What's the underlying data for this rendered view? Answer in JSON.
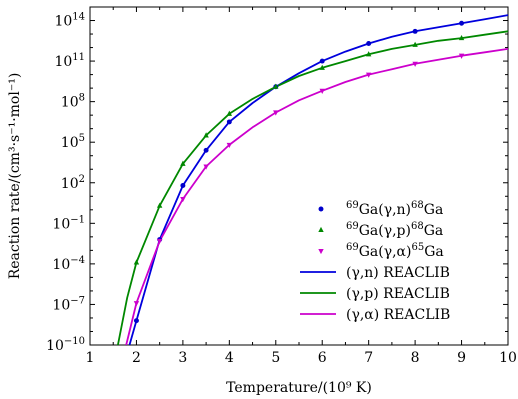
{
  "chart_data": {
    "type": "line",
    "xlabel": "Temperature/(10⁹ K)",
    "ylabel": "Reaction rate/(cm³·s⁻¹·mol⁻¹)",
    "xlim": [
      1,
      10
    ],
    "ylim_log10": [
      -10,
      15
    ],
    "y_scale": "log",
    "grid": false,
    "legend_position": "bottom-right",
    "x_ticks": [
      {
        "value": 1,
        "label": "1"
      },
      {
        "value": 2,
        "label": "2"
      },
      {
        "value": 3,
        "label": "3"
      },
      {
        "value": 4,
        "label": "4"
      },
      {
        "value": 5,
        "label": "5"
      },
      {
        "value": 6,
        "label": "6"
      },
      {
        "value": 7,
        "label": "7"
      },
      {
        "value": 8,
        "label": "8"
      },
      {
        "value": 9,
        "label": "9"
      },
      {
        "value": 10,
        "label": "10"
      }
    ],
    "y_ticks": [
      {
        "exp": -10,
        "base": "10",
        "sup": "−10"
      },
      {
        "exp": -7,
        "base": "10",
        "sup": "−7"
      },
      {
        "exp": -4,
        "base": "10",
        "sup": "−4"
      },
      {
        "exp": -1,
        "base": "10",
        "sup": "−1"
      },
      {
        "exp": 2,
        "base": "10",
        "sup": "2"
      },
      {
        "exp": 5,
        "base": "10",
        "sup": "5"
      },
      {
        "exp": 8,
        "base": "10",
        "sup": "8"
      },
      {
        "exp": 11,
        "base": "10",
        "sup": "11"
      },
      {
        "exp": 14,
        "base": "10",
        "sup": "14"
      }
    ],
    "series": [
      {
        "kind": "points",
        "marker": "circle",
        "color": "#0000cc",
        "label_parts": {
          "pre": "69",
          "mid": "Ga(γ,n)",
          "sup": "68",
          "post": "Ga"
        },
        "points": [
          [
            2.0,
            -8.2
          ],
          [
            2.5,
            -2.2
          ],
          [
            3.0,
            1.8
          ],
          [
            3.5,
            4.4
          ],
          [
            4.0,
            6.5
          ],
          [
            5.0,
            9.1
          ],
          [
            6.0,
            11.0
          ],
          [
            7.0,
            12.3
          ],
          [
            8.0,
            13.2
          ],
          [
            9.0,
            13.8
          ]
        ]
      },
      {
        "kind": "points",
        "marker": "triangle-up",
        "color": "#008800",
        "label_parts": {
          "pre": "69",
          "mid": "Ga(γ,p)",
          "sup": "68",
          "post": "Ga"
        },
        "points": [
          [
            2.0,
            -3.9
          ],
          [
            2.5,
            0.3
          ],
          [
            3.0,
            3.4
          ],
          [
            3.5,
            5.5
          ],
          [
            4.0,
            7.1
          ],
          [
            5.0,
            9.1
          ],
          [
            6.0,
            10.5
          ],
          [
            7.0,
            11.5
          ],
          [
            8.0,
            12.2
          ],
          [
            9.0,
            12.7
          ]
        ]
      },
      {
        "kind": "points",
        "marker": "triangle-down",
        "color": "#cc00cc",
        "label_parts": {
          "pre": "69",
          "mid": "Ga(γ,α)",
          "sup": "65",
          "post": "Ga"
        },
        "points": [
          [
            2.0,
            -6.9
          ],
          [
            2.5,
            -2.3
          ],
          [
            3.0,
            0.8
          ],
          [
            3.5,
            3.2
          ],
          [
            4.0,
            4.8
          ],
          [
            5.0,
            7.2
          ],
          [
            6.0,
            8.8
          ],
          [
            7.0,
            10.0
          ],
          [
            8.0,
            10.8
          ],
          [
            9.0,
            11.4
          ]
        ]
      },
      {
        "kind": "line",
        "color": "#0000dd",
        "label": "(γ,n) REACLIB",
        "points": [
          [
            1.85,
            -10.0
          ],
          [
            2.0,
            -8.2
          ],
          [
            2.5,
            -2.2
          ],
          [
            3.0,
            1.8
          ],
          [
            3.5,
            4.4
          ],
          [
            4.0,
            6.5
          ],
          [
            4.5,
            7.9
          ],
          [
            5.0,
            9.1
          ],
          [
            5.5,
            10.1
          ],
          [
            6.0,
            11.0
          ],
          [
            6.5,
            11.7
          ],
          [
            7.0,
            12.3
          ],
          [
            7.5,
            12.8
          ],
          [
            8.0,
            13.2
          ],
          [
            8.5,
            13.5
          ],
          [
            9.0,
            13.8
          ],
          [
            9.5,
            14.1
          ],
          [
            10.0,
            14.4
          ]
        ]
      },
      {
        "kind": "line",
        "color": "#008800",
        "label": "(γ,p) REACLIB",
        "points": [
          [
            1.6,
            -10.0
          ],
          [
            1.8,
            -6.5
          ],
          [
            2.0,
            -3.9
          ],
          [
            2.5,
            0.3
          ],
          [
            3.0,
            3.4
          ],
          [
            3.5,
            5.5
          ],
          [
            4.0,
            7.1
          ],
          [
            4.5,
            8.2
          ],
          [
            5.0,
            9.1
          ],
          [
            5.5,
            9.9
          ],
          [
            6.0,
            10.5
          ],
          [
            6.5,
            11.0
          ],
          [
            7.0,
            11.5
          ],
          [
            7.5,
            11.9
          ],
          [
            8.0,
            12.2
          ],
          [
            8.5,
            12.5
          ],
          [
            9.0,
            12.7
          ],
          [
            9.5,
            12.95
          ],
          [
            10.0,
            13.2
          ]
        ]
      },
      {
        "kind": "line",
        "color": "#cc00cc",
        "label": "(γ,α) REACLIB",
        "points": [
          [
            1.78,
            -10.0
          ],
          [
            2.0,
            -6.9
          ],
          [
            2.5,
            -2.3
          ],
          [
            3.0,
            0.8
          ],
          [
            3.5,
            3.2
          ],
          [
            4.0,
            4.8
          ],
          [
            4.5,
            6.1
          ],
          [
            5.0,
            7.2
          ],
          [
            5.5,
            8.1
          ],
          [
            6.0,
            8.8
          ],
          [
            6.5,
            9.45
          ],
          [
            7.0,
            10.0
          ],
          [
            7.5,
            10.4
          ],
          [
            8.0,
            10.8
          ],
          [
            8.5,
            11.1
          ],
          [
            9.0,
            11.4
          ],
          [
            9.5,
            11.65
          ],
          [
            10.0,
            11.9
          ]
        ]
      }
    ]
  }
}
